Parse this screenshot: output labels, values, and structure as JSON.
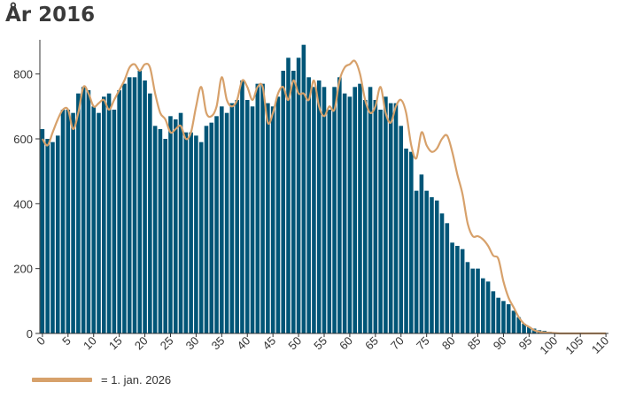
{
  "chart": {
    "title": "År 2016",
    "legend_label": "= 1. jan. 2026",
    "colors": {
      "bars": "#005577",
      "line": "#d7a16b",
      "axis": "#333333"
    }
  },
  "chart_data": {
    "type": "bar",
    "title": "År 2016",
    "xlabel": "",
    "ylabel": "",
    "ylim": [
      0,
      900
    ],
    "xlim": [
      0,
      110
    ],
    "yticks": [
      0,
      200,
      400,
      600,
      800
    ],
    "xticks": [
      0,
      5,
      10,
      15,
      20,
      25,
      30,
      35,
      40,
      45,
      50,
      55,
      60,
      65,
      70,
      75,
      80,
      85,
      90,
      95,
      100,
      105,
      110
    ],
    "grid": false,
    "legend_position": "bottom-left",
    "series": [
      {
        "type": "bar",
        "x": [
          0,
          1,
          2,
          3,
          4,
          5,
          6,
          7,
          8,
          9,
          10,
          11,
          12,
          13,
          14,
          15,
          16,
          17,
          18,
          19,
          20,
          21,
          22,
          23,
          24,
          25,
          26,
          27,
          28,
          29,
          30,
          31,
          32,
          33,
          34,
          35,
          36,
          37,
          38,
          39,
          40,
          41,
          42,
          43,
          44,
          45,
          46,
          47,
          48,
          49,
          50,
          51,
          52,
          53,
          54,
          55,
          56,
          57,
          58,
          59,
          60,
          61,
          62,
          63,
          64,
          65,
          66,
          67,
          68,
          69,
          70,
          71,
          72,
          73,
          74,
          75,
          76,
          77,
          78,
          79,
          80,
          81,
          82,
          83,
          84,
          85,
          86,
          87,
          88,
          89,
          90,
          91,
          92,
          93,
          94,
          95,
          96,
          97,
          98,
          99,
          100,
          101,
          102,
          103,
          104,
          105,
          106,
          107,
          108,
          109,
          110
        ],
        "values": [
          630,
          600,
          590,
          610,
          690,
          690,
          680,
          740,
          760,
          750,
          700,
          680,
          730,
          740,
          690,
          750,
          770,
          790,
          790,
          810,
          780,
          740,
          640,
          630,
          600,
          670,
          660,
          680,
          620,
          620,
          610,
          590,
          640,
          650,
          670,
          700,
          680,
          710,
          720,
          780,
          720,
          700,
          770,
          770,
          710,
          700,
          730,
          810,
          850,
          810,
          850,
          890,
          790,
          760,
          780,
          760,
          690,
          760,
          790,
          740,
          730,
          760,
          770,
          720,
          760,
          720,
          690,
          730,
          710,
          710,
          640,
          570,
          560,
          440,
          490,
          440,
          420,
          410,
          370,
          340,
          280,
          270,
          260,
          220,
          200,
          200,
          170,
          160,
          130,
          110,
          100,
          90,
          70,
          50,
          30,
          20,
          15,
          10,
          8,
          5,
          3,
          2,
          1,
          1,
          0,
          0,
          0,
          0,
          0,
          0,
          0
        ]
      },
      {
        "type": "line",
        "name": "= 1. jan. 2026",
        "x": [
          0,
          1,
          2,
          3,
          4,
          5,
          6,
          7,
          8,
          9,
          10,
          11,
          12,
          13,
          14,
          15,
          16,
          17,
          18,
          19,
          20,
          21,
          22,
          23,
          24,
          25,
          26,
          27,
          28,
          29,
          30,
          31,
          32,
          33,
          34,
          35,
          36,
          37,
          38,
          39,
          40,
          41,
          42,
          43,
          44,
          45,
          46,
          47,
          48,
          49,
          50,
          51,
          52,
          53,
          54,
          55,
          56,
          57,
          58,
          59,
          60,
          61,
          62,
          63,
          64,
          65,
          66,
          67,
          68,
          69,
          70,
          71,
          72,
          73,
          74,
          75,
          76,
          77,
          78,
          79,
          80,
          81,
          82,
          83,
          84,
          85,
          86,
          87,
          88,
          89,
          90,
          91,
          92,
          93,
          94,
          95,
          96,
          97,
          98,
          99,
          100,
          101,
          102,
          103,
          104,
          105,
          106,
          107,
          108,
          109,
          110
        ],
        "values": [
          600,
          580,
          620,
          660,
          690,
          690,
          630,
          680,
          760,
          740,
          700,
          710,
          720,
          690,
          720,
          750,
          780,
          820,
          830,
          810,
          830,
          820,
          740,
          680,
          660,
          620,
          630,
          640,
          600,
          620,
          700,
          760,
          680,
          670,
          700,
          790,
          720,
          700,
          720,
          780,
          760,
          720,
          760,
          760,
          650,
          680,
          740,
          760,
          720,
          780,
          740,
          740,
          720,
          780,
          700,
          670,
          700,
          690,
          780,
          820,
          830,
          840,
          800,
          720,
          680,
          700,
          760,
          680,
          650,
          700,
          720,
          680,
          580,
          540,
          620,
          580,
          560,
          570,
          600,
          610,
          560,
          490,
          430,
          340,
          300,
          300,
          290,
          270,
          240,
          230,
          160,
          110,
          80,
          50,
          30,
          20,
          10,
          5,
          3,
          2,
          1,
          0,
          0,
          0,
          0,
          0,
          0,
          0,
          0,
          0,
          0
        ]
      }
    ]
  }
}
